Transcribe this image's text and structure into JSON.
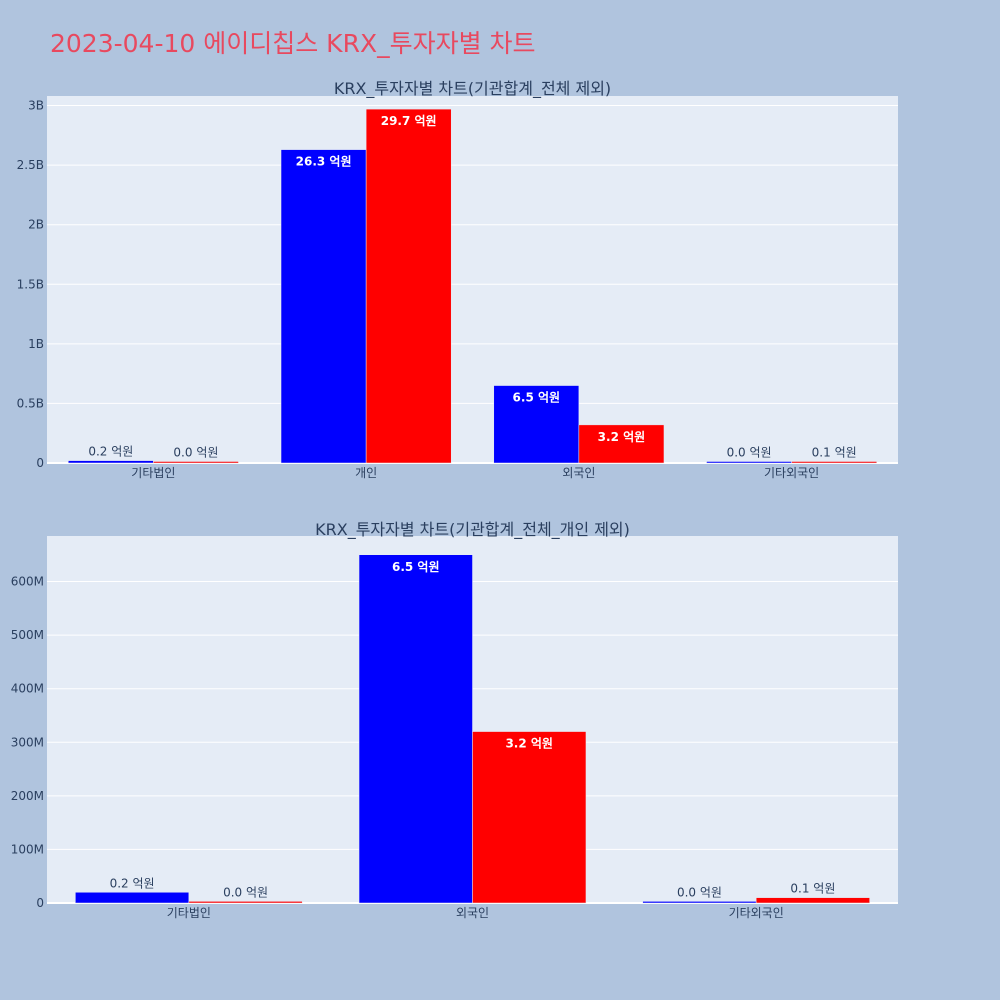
{
  "title": "2023-04-10 에이디칩스 KRX_투자자별 차트",
  "colors": {
    "title": "#e8495f",
    "buy": "#0000ff",
    "sell": "#ff0000",
    "background": "#b0c4de",
    "plot": "#e5ecf6"
  },
  "chart_data": [
    {
      "type": "bar",
      "title": "KRX_투자자별 차트(기관합계_전체 제외)",
      "categories": [
        "기타법인",
        "개인",
        "외국인",
        "기타외국인"
      ],
      "series": [
        {
          "color": "#0000ff",
          "values": [
            20000000,
            2630000000,
            650000000,
            3000000
          ],
          "labels": [
            "0.2 억원",
            "26.3 억원",
            "6.5 억원",
            "0.0 억원"
          ]
        },
        {
          "color": "#ff0000",
          "values": [
            3000000,
            2970000000,
            320000000,
            10000000
          ],
          "labels": [
            "0.0 억원",
            "29.7 억원",
            "3.2 억원",
            "0.1 억원"
          ]
        }
      ],
      "ylim": [
        0,
        3080000000
      ],
      "yticks": [
        0,
        500000000,
        1000000000,
        1500000000,
        2000000000,
        2500000000,
        3000000000
      ],
      "ytick_labels": [
        "0",
        "0.5B",
        "1B",
        "1.5B",
        "2B",
        "2.5B",
        "3B"
      ],
      "grid": true,
      "legend": "none"
    },
    {
      "type": "bar",
      "title": "KRX_투자자별 차트(기관합계_전체_개인 제외)",
      "categories": [
        "기타법인",
        "외국인",
        "기타외국인"
      ],
      "series": [
        {
          "color": "#0000ff",
          "values": [
            20000000,
            650000000,
            3000000
          ],
          "labels": [
            "0.2 억원",
            "6.5 억원",
            "0.0 억원"
          ]
        },
        {
          "color": "#ff0000",
          "values": [
            3000000,
            320000000,
            10000000
          ],
          "labels": [
            "0.0 억원",
            "3.2 억원",
            "0.1 억원"
          ]
        }
      ],
      "ylim": [
        0,
        685000000
      ],
      "yticks": [
        0,
        100000000,
        200000000,
        300000000,
        400000000,
        500000000,
        600000000
      ],
      "ytick_labels": [
        "0",
        "100M",
        "200M",
        "300M",
        "400M",
        "500M",
        "600M"
      ],
      "grid": true,
      "legend": "none"
    }
  ]
}
